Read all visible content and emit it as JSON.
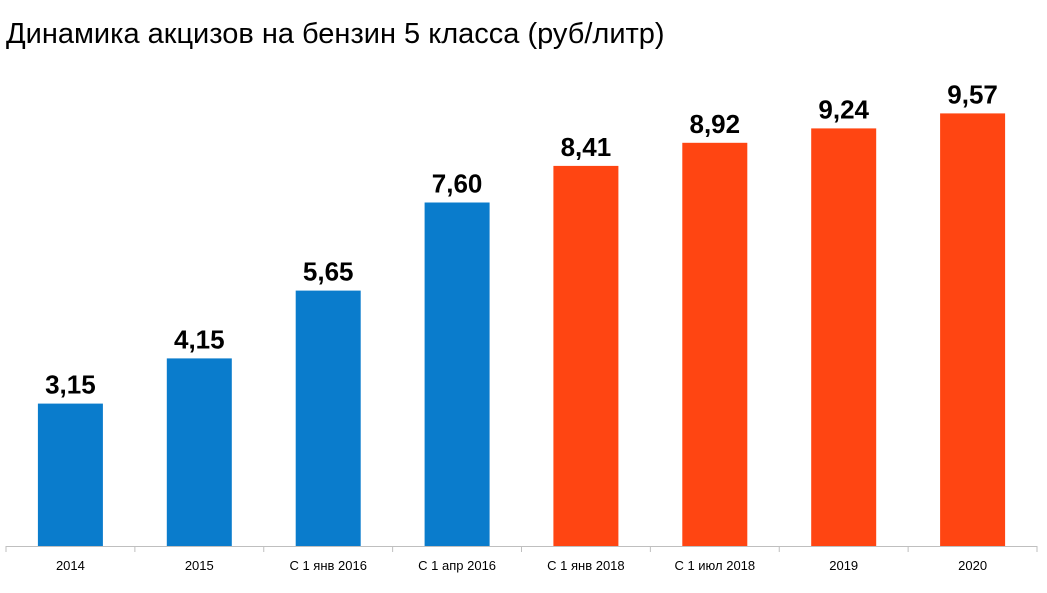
{
  "chart_data": {
    "type": "bar",
    "title": "Динамика акцизов на бензин 5 класса (руб/литр)",
    "categories": [
      "2014",
      "2015",
      "С 1 янв 2016",
      "С 1 апр 2016",
      "С 1 янв 2018",
      "С 1 июл 2018",
      "2019",
      "2020"
    ],
    "values": [
      3.15,
      4.15,
      5.65,
      7.6,
      8.41,
      8.92,
      9.24,
      9.57
    ],
    "value_labels": [
      "3,15",
      "4,15",
      "5,65",
      "7,60",
      "8,41",
      "8,92",
      "9,24",
      "9,57"
    ],
    "bar_colors": [
      "#0a7ccc",
      "#0a7ccc",
      "#0a7ccc",
      "#0a7ccc",
      "#ff4512",
      "#ff4512",
      "#ff4512",
      "#ff4512"
    ],
    "xlabel": "",
    "ylabel": "",
    "ylim": [
      0,
      10
    ],
    "grid": false,
    "legend": "none"
  }
}
